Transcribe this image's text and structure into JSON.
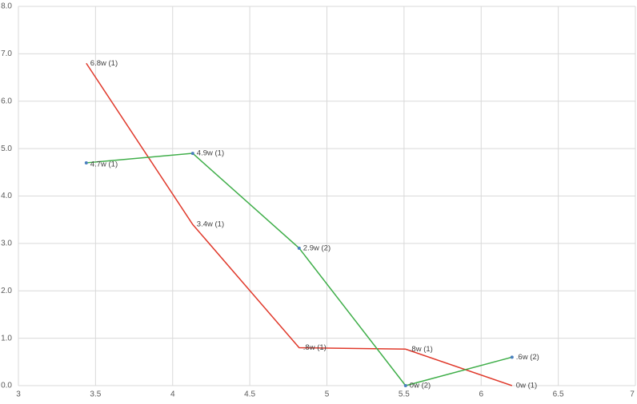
{
  "chart_data": {
    "type": "line",
    "x": [
      3.44,
      4.13,
      4.82,
      5.51,
      6.2
    ],
    "series": [
      {
        "color": "#e0392b",
        "values": [
          6.8,
          3.4,
          0.8,
          0.77,
          0
        ],
        "value_labels": [
          "6.8w (1)",
          "3.4w (1)",
          ".8w (1)",
          ".8w (1)",
          "0w (1)"
        ]
      },
      {
        "color": "#3fae49",
        "marker_color": "#4a7fbf",
        "values": [
          4.7,
          4.9,
          2.9,
          0,
          0.6
        ],
        "value_labels": [
          "4.7w (1)",
          "4.9w (1)",
          "2.9w (2)",
          "0w (2)",
          ".6w (2)"
        ]
      }
    ],
    "xlim": [
      3,
      7
    ],
    "xticks": [
      3,
      3.5,
      4,
      4.5,
      5,
      5.5,
      6,
      6.5,
      7
    ],
    "ylim": [
      0,
      8
    ],
    "yticks": [
      {
        "value": 0,
        "label": "0.0"
      },
      {
        "value": 1,
        "label": "1.0"
      },
      {
        "value": 2,
        "label": "2.0"
      },
      {
        "value": 3,
        "label": "3.0"
      },
      {
        "value": 4,
        "label": "4.0"
      },
      {
        "value": 5,
        "label": "5.0"
      },
      {
        "value": 6,
        "label": "6.0"
      },
      {
        "value": 7,
        "label": "7.0"
      },
      {
        "value": 8,
        "label": "8.0"
      }
    ],
    "grid": true
  }
}
